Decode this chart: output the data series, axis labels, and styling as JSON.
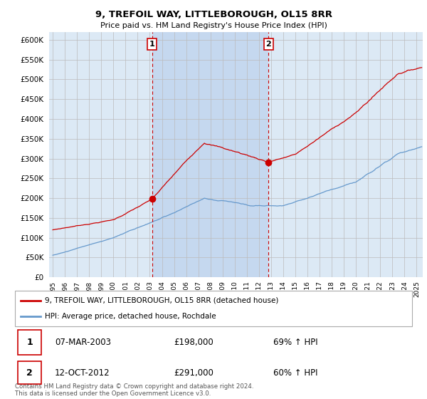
{
  "title": "9, TREFOIL WAY, LITTLEBOROUGH, OL15 8RR",
  "subtitle": "Price paid vs. HM Land Registry's House Price Index (HPI)",
  "plot_bg_color": "#dce9f5",
  "highlight_color": "#c5d8ef",
  "ylim": [
    0,
    620000
  ],
  "yticks": [
    0,
    50000,
    100000,
    150000,
    200000,
    250000,
    300000,
    350000,
    400000,
    450000,
    500000,
    550000,
    600000
  ],
  "xlim_start": 1994.7,
  "xlim_end": 2025.5,
  "legend_entries": [
    "9, TREFOIL WAY, LITTLEBOROUGH, OL15 8RR (detached house)",
    "HPI: Average price, detached house, Rochdale"
  ],
  "sale1_date": "07-MAR-2003",
  "sale1_price": "£198,000",
  "sale1_hpi": "69% ↑ HPI",
  "sale1_year": 2003.18,
  "sale1_value": 198000,
  "sale2_date": "12-OCT-2012",
  "sale2_price": "£291,000",
  "sale2_hpi": "60% ↑ HPI",
  "sale2_year": 2012.79,
  "sale2_value": 291000,
  "red_line_color": "#cc0000",
  "blue_line_color": "#6699cc",
  "footer": "Contains HM Land Registry data © Crown copyright and database right 2024.\nThis data is licensed under the Open Government Licence v3.0.",
  "xtick_years": [
    1995,
    1996,
    1997,
    1998,
    1999,
    2000,
    2001,
    2002,
    2003,
    2004,
    2005,
    2006,
    2007,
    2008,
    2009,
    2010,
    2011,
    2012,
    2013,
    2014,
    2015,
    2016,
    2017,
    2018,
    2019,
    2020,
    2021,
    2022,
    2023,
    2024,
    2025
  ]
}
